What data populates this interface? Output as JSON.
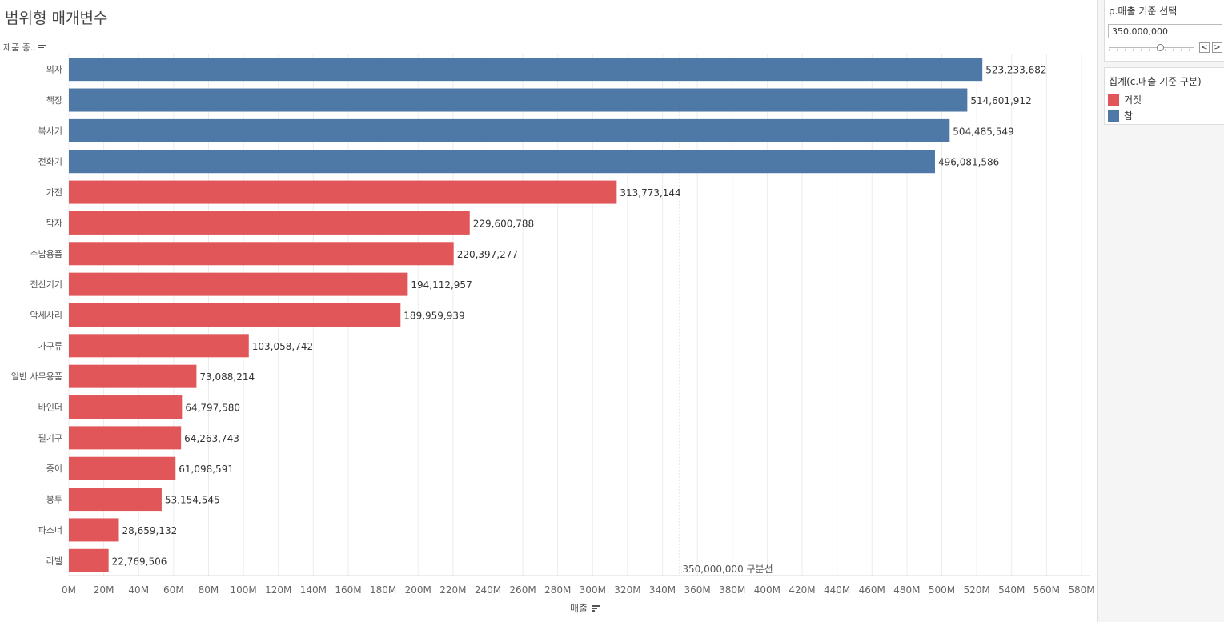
{
  "page_title": "범위형 매개변수",
  "dimension_header": "제품 중..",
  "colors": {
    "false": "#e15759",
    "true": "#4e79a7",
    "grid": "#ececec",
    "ref_line": "#666666"
  },
  "parameter": {
    "title": "p.매출 기준 선택",
    "value": "350,000,000",
    "fraction": 0.6,
    "prev": "<",
    "next": ">"
  },
  "legend": {
    "title": "집계(c.매출 기준 구분)",
    "items": [
      {
        "label": "거짓",
        "key": "false"
      },
      {
        "label": "참",
        "key": "true"
      }
    ]
  },
  "chart_data": {
    "type": "bar",
    "orientation": "horizontal",
    "xlabel": "매출",
    "xlim": [
      0,
      580000000
    ],
    "ticks": [
      0,
      20000000,
      40000000,
      60000000,
      80000000,
      100000000,
      120000000,
      140000000,
      160000000,
      180000000,
      200000000,
      220000000,
      240000000,
      260000000,
      280000000,
      300000000,
      320000000,
      340000000,
      360000000,
      380000000,
      400000000,
      420000000,
      440000000,
      460000000,
      480000000,
      500000000,
      520000000,
      540000000,
      560000000,
      580000000
    ],
    "tick_labels": [
      "0M",
      "20M",
      "40M",
      "60M",
      "80M",
      "100M",
      "120M",
      "140M",
      "160M",
      "180M",
      "200M",
      "220M",
      "240M",
      "260M",
      "280M",
      "300M",
      "320M",
      "340M",
      "360M",
      "380M",
      "400M",
      "420M",
      "440M",
      "460M",
      "480M",
      "500M",
      "520M",
      "540M",
      "560M",
      "580M"
    ],
    "reference_line": {
      "value": 350000000,
      "label": "350,000,000 구분선"
    },
    "categories": [
      "의자",
      "책장",
      "복사기",
      "전화기",
      "가전",
      "탁자",
      "수납용품",
      "전산기기",
      "악세사리",
      "가구류",
      "일반 사무용품",
      "바인더",
      "필기구",
      "종이",
      "봉투",
      "파스너",
      "라벨"
    ],
    "values": [
      523233682,
      514601912,
      504485549,
      496081586,
      313773144,
      229600788,
      220397277,
      194112957,
      189959939,
      103058742,
      73088214,
      64797580,
      64263743,
      61098591,
      53154545,
      28659132,
      22769506
    ],
    "labels": [
      "523,233,682",
      "514,601,912",
      "504,485,549",
      "496,081,586",
      "313,773,144",
      "229,600,788",
      "220,397,277",
      "194,112,957",
      "189,959,939",
      "103,058,742",
      "73,088,214",
      "64,797,580",
      "64,263,743",
      "61,098,591",
      "53,154,545",
      "28,659,132",
      "22,769,506"
    ],
    "flags": [
      true,
      true,
      true,
      true,
      false,
      false,
      false,
      false,
      false,
      false,
      false,
      false,
      false,
      false,
      false,
      false,
      false
    ]
  }
}
